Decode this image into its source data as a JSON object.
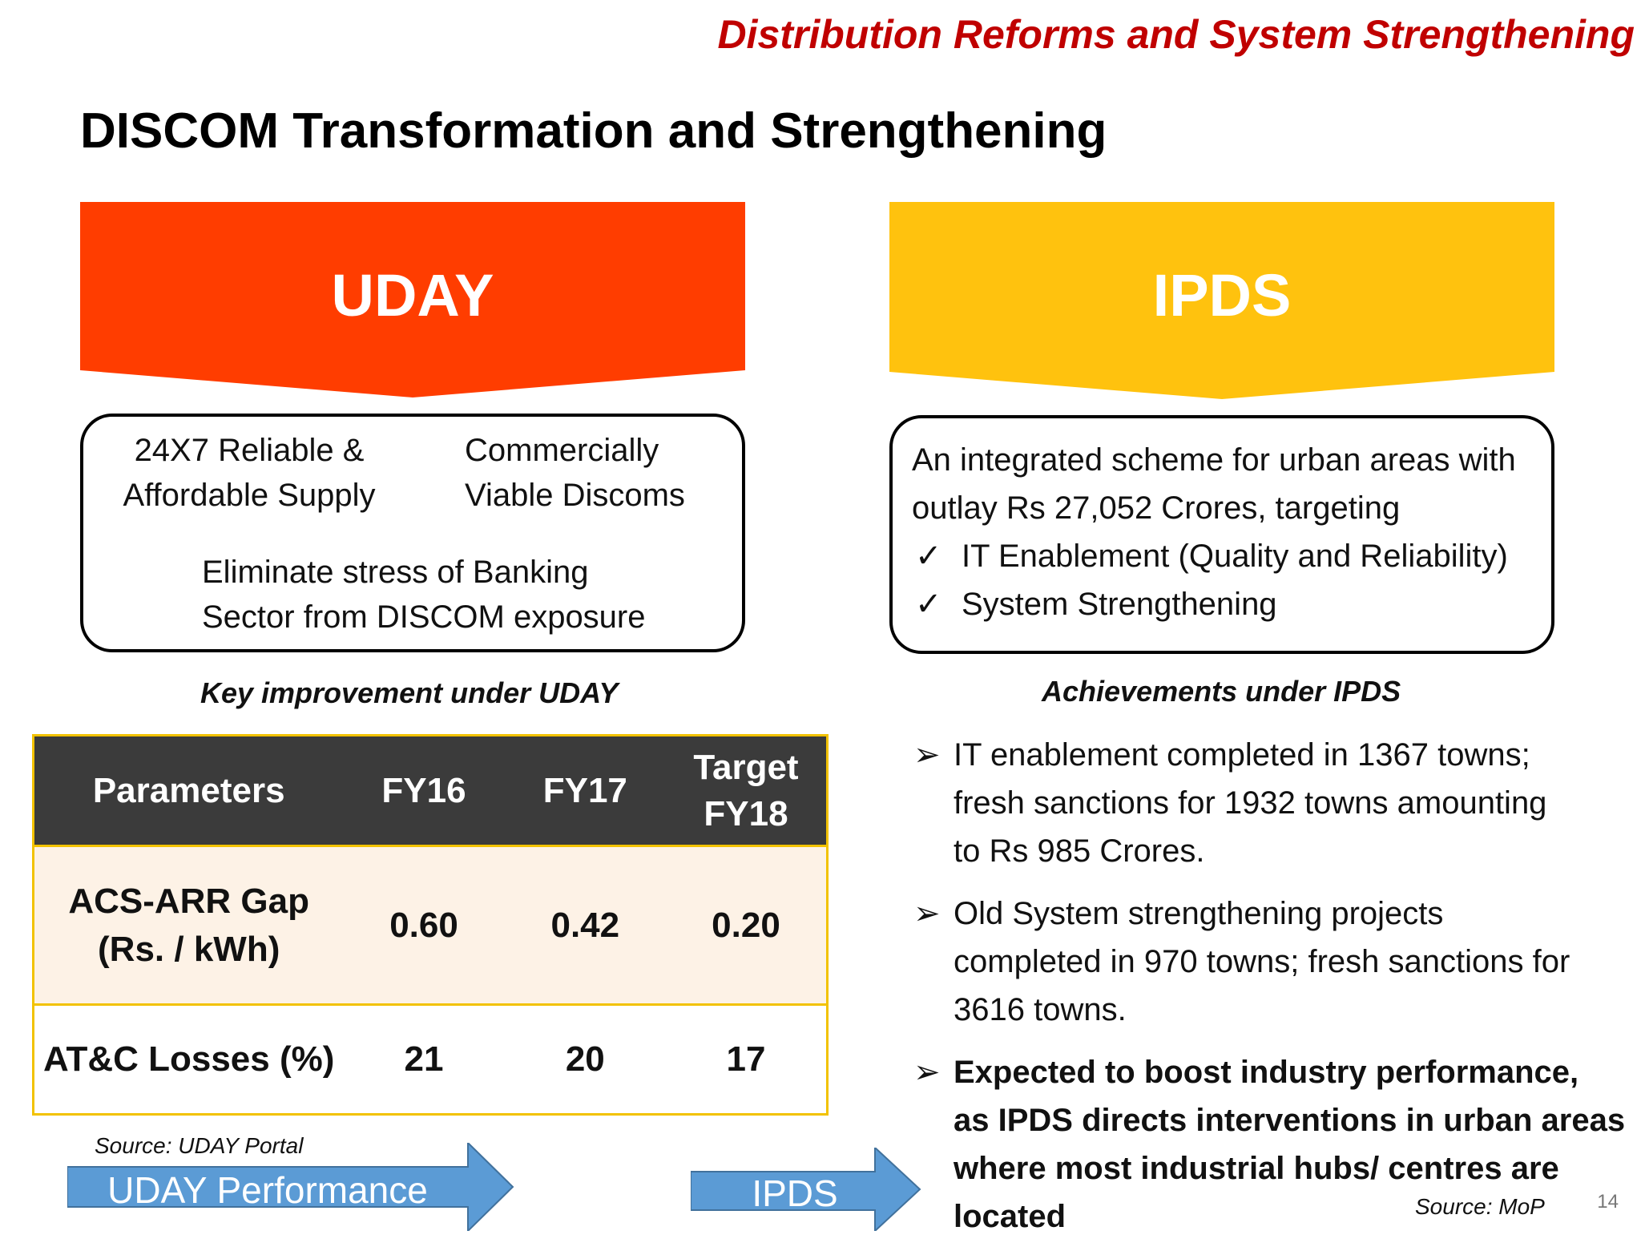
{
  "header": {
    "section_title": "Distribution Reforms and System Strengthening",
    "slide_title": "DISCOM Transformation and Strengthening"
  },
  "uday": {
    "banner": "UDAY",
    "banner_color": "#ff3d00",
    "goal_1": "24X7 Reliable &\nAffordable Supply",
    "goal_2": "Commercially\nViable Discoms",
    "goal_3": "Eliminate stress of Banking\nSector from DISCOM exposure",
    "caption": "Key improvement under UDAY",
    "table": {
      "headers": [
        "Parameters",
        "FY16",
        "FY17",
        "Target\nFY18"
      ],
      "rows": [
        [
          "ACS-ARR Gap\n(Rs. / kWh)",
          "0.60",
          "0.42",
          "0.20"
        ],
        [
          "AT&C Losses (%)",
          "21",
          "20",
          "17"
        ]
      ]
    },
    "source": "Source: UDAY Portal",
    "arrow_button": "UDAY Performance"
  },
  "ipds": {
    "banner": "IPDS",
    "banner_color": "#ffc20e",
    "description": "An integrated scheme for urban areas with\noutlay Rs 27,052 Crores, targeting",
    "checks": [
      "IT Enablement (Quality and Reliability)",
      "System Strengthening"
    ],
    "caption": "Achievements under IPDS",
    "achievements": [
      "IT enablement completed in 1367 towns;\nfresh sanctions for 1932 towns amounting\nto Rs 985 Crores.",
      "Old System strengthening projects\ncompleted in 970 towns; fresh sanctions for\n3616 towns.",
      "Expected to boost industry performance,\nas IPDS directs interventions in urban areas\nwhere most industrial hubs/ centres are\nlocated"
    ],
    "source": "Source: MoP",
    "arrow_button": "IPDS"
  },
  "page_number": "14",
  "colors": {
    "arrow_blue": "#5b9bd5",
    "title_red": "#c00000",
    "table_border": "#f2c200"
  }
}
